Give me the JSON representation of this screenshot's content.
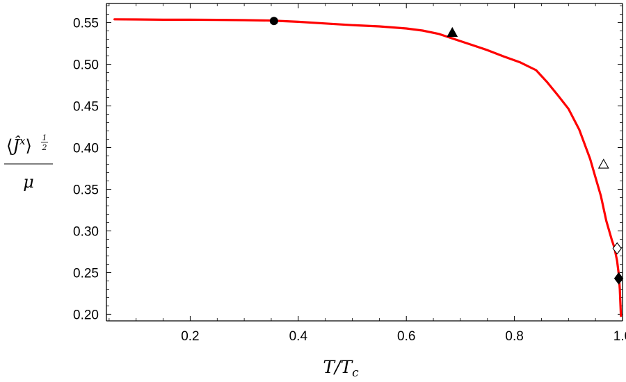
{
  "chart_data": {
    "type": "line",
    "title": "",
    "xlabel": "T/T_c",
    "ylabel": "⟨Ĵ^x⟩^(1/2) / μ",
    "xlim": [
      0.045,
      1.0
    ],
    "ylim": [
      0.192,
      0.573
    ],
    "x_ticks": [
      0.2,
      0.4,
      0.6,
      0.8,
      1.0
    ],
    "x_tick_labels": [
      "0.2",
      "0.4",
      "0.6",
      "0.8",
      "1.0"
    ],
    "y_ticks": [
      0.2,
      0.25,
      0.3,
      0.35,
      0.4,
      0.45,
      0.5,
      0.55
    ],
    "y_tick_labels": [
      "0.20",
      "0.25",
      "0.30",
      "0.35",
      "0.40",
      "0.45",
      "0.50",
      "0.55"
    ],
    "grid": false,
    "series": [
      {
        "color": "#ff0000",
        "x": [
          0.06,
          0.1,
          0.15,
          0.2,
          0.25,
          0.3,
          0.35,
          0.4,
          0.45,
          0.5,
          0.55,
          0.6,
          0.63,
          0.66,
          0.69,
          0.72,
          0.75,
          0.78,
          0.81,
          0.84,
          0.86,
          0.88,
          0.9,
          0.92,
          0.94,
          0.95,
          0.96,
          0.97,
          0.98,
          0.985,
          0.99,
          0.993,
          0.995,
          0.997
        ],
        "y": [
          0.554,
          0.5538,
          0.5535,
          0.5535,
          0.5533,
          0.553,
          0.5525,
          0.551,
          0.549,
          0.547,
          0.5455,
          0.543,
          0.5405,
          0.5365,
          0.53,
          0.5235,
          0.517,
          0.5095,
          0.5025,
          0.493,
          0.479,
          0.463,
          0.4465,
          0.4215,
          0.3865,
          0.364,
          0.342,
          0.312,
          0.2895,
          0.28,
          0.264,
          0.248,
          0.23,
          0.198
        ]
      }
    ],
    "markers": [
      {
        "shape": "circle",
        "filled": true,
        "x": 0.355,
        "y": 0.552
      },
      {
        "shape": "triangle",
        "filled": true,
        "x": 0.685,
        "y": 0.538
      },
      {
        "shape": "triangle",
        "filled": false,
        "x": 0.965,
        "y": 0.38
      },
      {
        "shape": "diamond",
        "filled": false,
        "x": 0.99,
        "y": 0.279
      },
      {
        "shape": "diamond",
        "filled": true,
        "x": 0.993,
        "y": 0.243
      }
    ]
  }
}
